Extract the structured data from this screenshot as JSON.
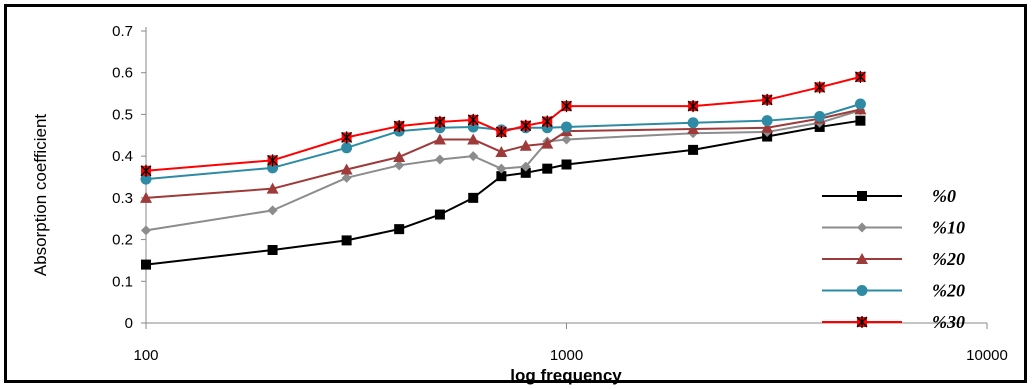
{
  "chart_data": {
    "type": "line",
    "title": "",
    "xlabel": "log frequency",
    "ylabel": "Absorption  coefficient",
    "x_scale": "log",
    "xlim": [
      100,
      10000
    ],
    "ylim": [
      0,
      0.7
    ],
    "x_ticks": [
      "100",
      "1000",
      "10000"
    ],
    "y_ticks": [
      "0",
      "0.1",
      "0.2",
      "0.3",
      "0.4",
      "0.5",
      "0.6",
      "0.7"
    ],
    "grid": false,
    "legend_position": "right",
    "x": [
      100,
      200,
      300,
      400,
      500,
      600,
      700,
      800,
      900,
      1000,
      2000,
      3000,
      4000,
      5000
    ],
    "series": [
      {
        "name": "%0",
        "color": "#000000",
        "marker": "square",
        "values": [
          0.14,
          0.175,
          0.198,
          0.225,
          0.26,
          0.3,
          0.352,
          0.36,
          0.37,
          0.38,
          0.415,
          0.447,
          0.47,
          0.485
        ]
      },
      {
        "name": "%10",
        "color": "#8c8c8c",
        "marker": "diamond",
        "values": [
          0.222,
          0.27,
          0.348,
          0.378,
          0.392,
          0.4,
          0.37,
          0.375,
          0.435,
          0.44,
          0.455,
          0.458,
          0.48,
          0.51
        ]
      },
      {
        "name": "%20",
        "color": "#9e3a3a",
        "marker": "triangle",
        "values": [
          0.3,
          0.322,
          0.368,
          0.398,
          0.44,
          0.44,
          0.41,
          0.425,
          0.43,
          0.46,
          0.465,
          0.468,
          0.49,
          0.512
        ]
      },
      {
        "name": "%20",
        "color": "#2e8ba3",
        "marker": "circle",
        "values": [
          0.345,
          0.372,
          0.42,
          0.46,
          0.468,
          0.47,
          0.463,
          0.468,
          0.468,
          0.47,
          0.48,
          0.485,
          0.495,
          0.525
        ]
      },
      {
        "name": "%30",
        "color": "#ff0000",
        "marker": "star",
        "values": [
          0.365,
          0.39,
          0.445,
          0.472,
          0.482,
          0.487,
          0.458,
          0.473,
          0.483,
          0.52,
          0.52,
          0.535,
          0.565,
          0.59
        ]
      }
    ]
  }
}
